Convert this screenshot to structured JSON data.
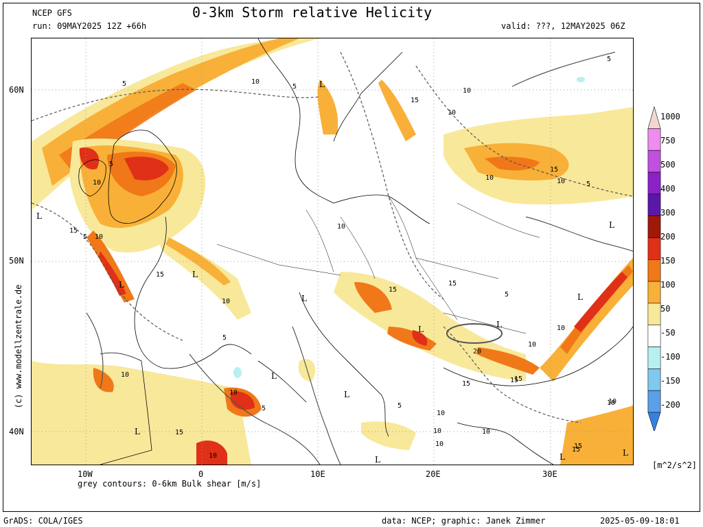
{
  "header": {
    "model": "NCEP GFS",
    "run": "run: 09MAY2025 12Z +66h",
    "title": "0-3km Storm relative Helicity",
    "valid": "valid: ???, 12MAY2025 06Z"
  },
  "axes": {
    "lat_labels": [
      "60N",
      "50N",
      "40N"
    ],
    "lon_labels": [
      "10W",
      "0",
      "10E",
      "20E",
      "30E"
    ]
  },
  "map": {
    "pressure_markers": [
      "L",
      "L",
      "L",
      "L",
      "L",
      "L",
      "L",
      "L",
      "L",
      "L",
      "L",
      "L",
      "L",
      "L",
      "L"
    ],
    "contour_labels": [
      "5",
      "10",
      "5",
      "15",
      "10",
      "5",
      "10",
      "5",
      "10",
      "15",
      "5",
      "10",
      "15",
      "10",
      "5",
      "10",
      "15",
      "15",
      "15",
      "10",
      "15",
      "10",
      "5",
      "15",
      "10",
      "5",
      "10",
      "20",
      "15",
      "10",
      "10",
      "10",
      "15",
      "5",
      "10",
      "10",
      "10",
      "15",
      "10",
      "5",
      "10",
      "10",
      "15"
    ]
  },
  "colorbar": {
    "labels": [
      "1000",
      "750",
      "500",
      "400",
      "300",
      "200",
      "150",
      "100",
      "50",
      "-50",
      "-100",
      "-150",
      "-200"
    ],
    "colors": [
      "#f0d8d0",
      "#ee8cf0",
      "#c050e0",
      "#8a22c8",
      "#5a18a8",
      "#a01808",
      "#e03018",
      "#f07818",
      "#f8b038",
      "#f8e89a",
      "#ffffff",
      "#b8f0f0",
      "#80c8f0",
      "#5aa0e8",
      "#3880e0"
    ],
    "units": "[m^2/s^2]"
  },
  "footer": {
    "contour_note": "grey contours: 0-6km Bulk shear [m/s]",
    "software": "GrADS: COLA/IGES",
    "credits": "data: NCEP; graphic: Janek Zimmer",
    "timestamp": "2025-05-09-18:01",
    "watermark": "(c) www.modellzentrale.de"
  }
}
